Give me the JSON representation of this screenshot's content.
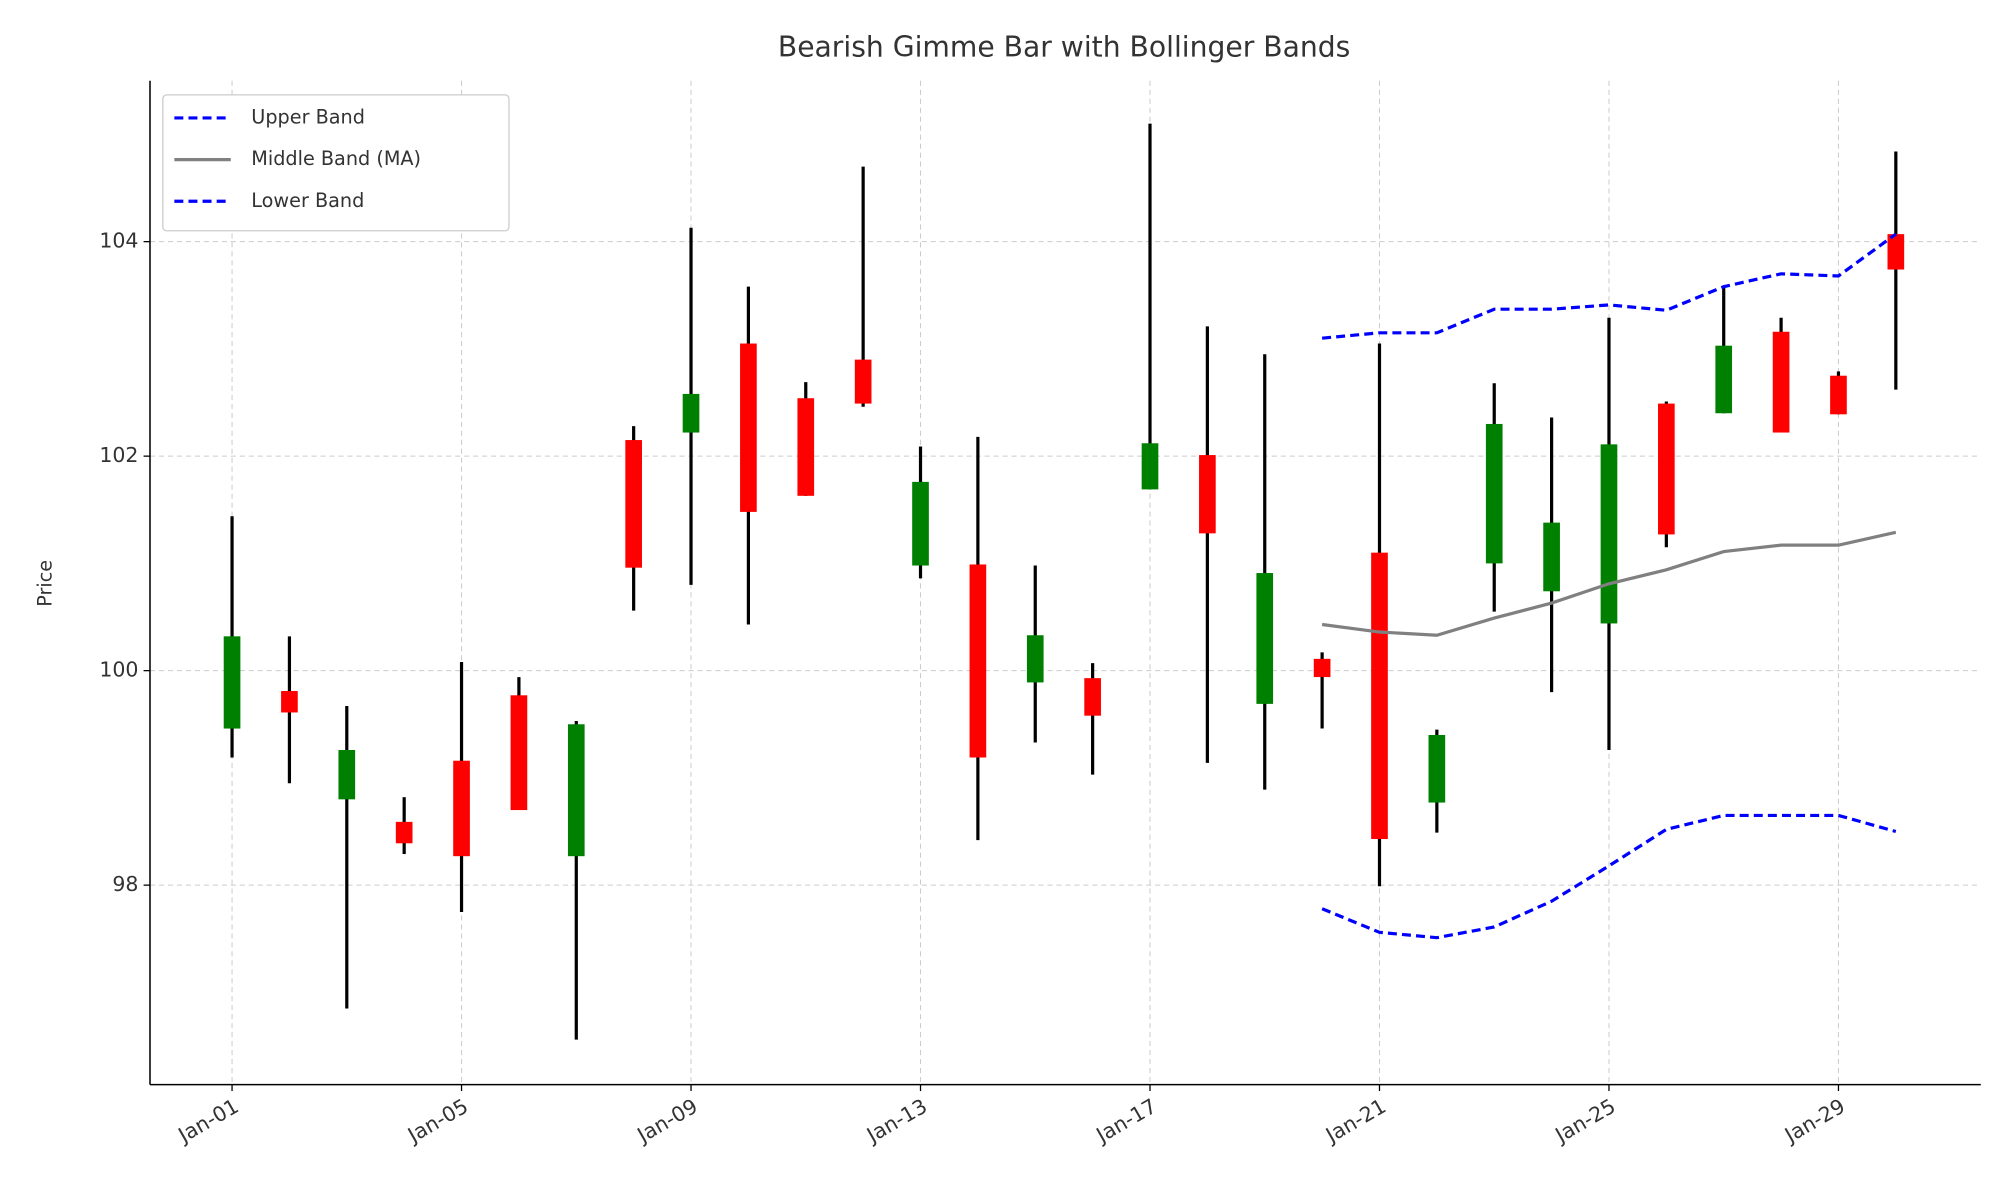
{
  "chart_data": {
    "type": "candlestick",
    "title": "Bearish Gimme Bar with Bollinger Bands",
    "y_label": "Price",
    "x": [
      "Jan-01",
      "Jan-02",
      "Jan-03",
      "Jan-04",
      "Jan-05",
      "Jan-06",
      "Jan-07",
      "Jan-08",
      "Jan-09",
      "Jan-10",
      "Jan-11",
      "Jan-12",
      "Jan-13",
      "Jan-14",
      "Jan-15",
      "Jan-16",
      "Jan-17",
      "Jan-18",
      "Jan-19",
      "Jan-20",
      "Jan-21",
      "Jan-22",
      "Jan-23",
      "Jan-24",
      "Jan-25",
      "Jan-26",
      "Jan-27",
      "Jan-28",
      "Jan-29",
      "Jan-30"
    ],
    "open": [
      99.46,
      99.81,
      98.8,
      98.59,
      99.16,
      99.77,
      98.27,
      102.15,
      102.22,
      103.05,
      102.54,
      102.9,
      100.98,
      100.99,
      99.89,
      99.93,
      101.69,
      102.01,
      99.69,
      100.11,
      101.1,
      98.77,
      101.0,
      100.74,
      100.44,
      102.49,
      102.4,
      103.16,
      102.75,
      104.07
    ],
    "high": [
      101.44,
      100.32,
      99.67,
      98.82,
      100.08,
      99.94,
      99.53,
      102.28,
      104.13,
      103.58,
      102.69,
      104.7,
      102.09,
      102.18,
      100.98,
      100.07,
      105.1,
      103.21,
      102.95,
      100.17,
      103.05,
      99.45,
      102.68,
      102.36,
      103.29,
      102.51,
      103.59,
      103.29,
      102.79,
      104.84
    ],
    "low": [
      99.19,
      98.95,
      96.85,
      98.29,
      97.75,
      98.7,
      96.56,
      100.56,
      100.8,
      100.43,
      101.63,
      102.46,
      100.86,
      98.42,
      99.33,
      99.03,
      101.69,
      99.14,
      98.89,
      99.46,
      97.99,
      98.49,
      100.55,
      99.8,
      99.26,
      101.15,
      102.4,
      102.22,
      102.39,
      102.62
    ],
    "close": [
      100.32,
      99.61,
      99.26,
      98.39,
      98.27,
      98.7,
      99.5,
      100.96,
      102.58,
      101.48,
      101.63,
      102.49,
      101.76,
      99.19,
      100.33,
      99.58,
      102.12,
      101.28,
      100.91,
      99.94,
      98.43,
      99.4,
      102.3,
      101.38,
      102.11,
      101.27,
      103.03,
      102.22,
      102.39,
      103.74
    ],
    "up_color": "green",
    "down_color": "red",
    "wick_color": "black",
    "series": [
      {
        "name": "Upper Band",
        "color": "#0000ff",
        "dashed": true,
        "values": [
          null,
          null,
          null,
          null,
          null,
          null,
          null,
          null,
          null,
          null,
          null,
          null,
          null,
          null,
          null,
          null,
          null,
          null,
          null,
          103.1,
          103.15,
          103.15,
          103.37,
          103.37,
          103.41,
          103.36,
          103.58,
          103.7,
          103.68,
          104.07
        ]
      },
      {
        "name": "Middle Band (MA)",
        "color": "#808080",
        "dashed": false,
        "values": [
          null,
          null,
          null,
          null,
          null,
          null,
          null,
          null,
          null,
          null,
          null,
          null,
          null,
          null,
          null,
          null,
          null,
          null,
          null,
          100.43,
          100.36,
          100.33,
          100.49,
          100.63,
          100.81,
          100.94,
          101.11,
          101.17,
          101.17,
          101.29
        ]
      },
      {
        "name": "Lower Band",
        "color": "#0000ff",
        "dashed": true,
        "values": [
          null,
          null,
          null,
          null,
          null,
          null,
          null,
          null,
          null,
          null,
          null,
          null,
          null,
          null,
          null,
          null,
          null,
          null,
          null,
          97.78,
          97.56,
          97.51,
          97.61,
          97.85,
          98.18,
          98.52,
          98.65,
          98.65,
          98.65,
          98.5
        ]
      }
    ],
    "xticks": [
      "Jan-01",
      "Jan-05",
      "Jan-09",
      "Jan-13",
      "Jan-17",
      "Jan-21",
      "Jan-25",
      "Jan-29"
    ],
    "ylim": [
      96.14,
      105.5
    ],
    "yticks": [
      98,
      100,
      102,
      104
    ],
    "grid": true,
    "legend": "upper left"
  }
}
